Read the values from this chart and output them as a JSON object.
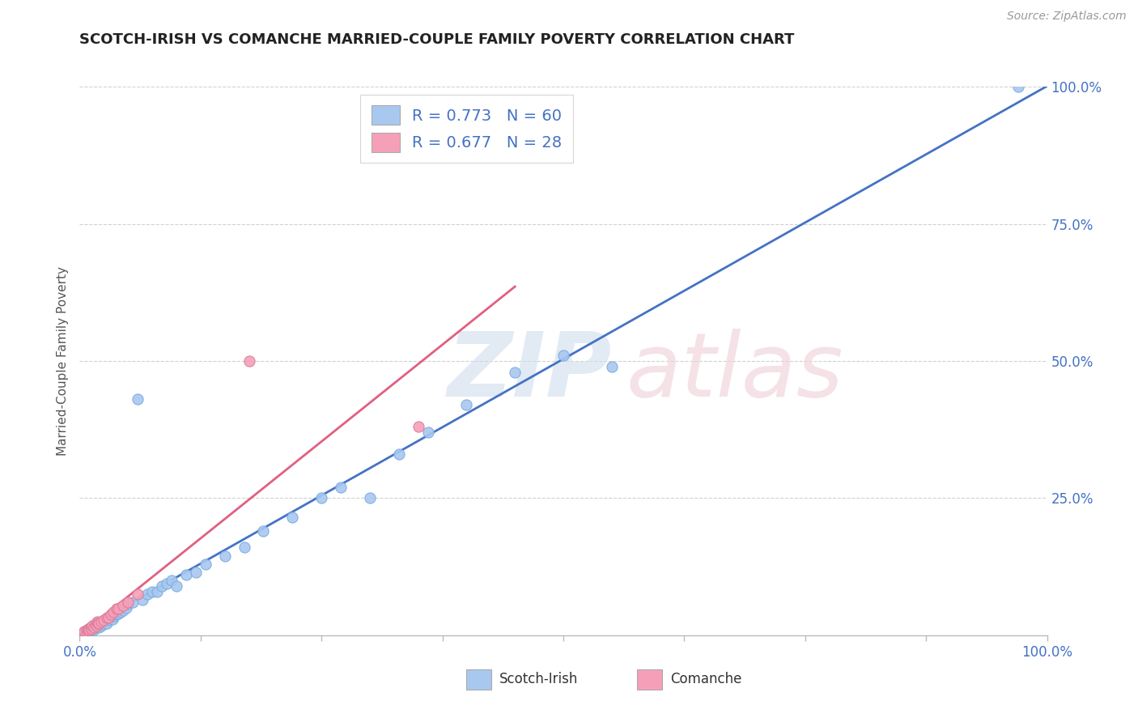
{
  "title": "SCOTCH-IRISH VS COMANCHE MARRIED-COUPLE FAMILY POVERTY CORRELATION CHART",
  "source": "Source: ZipAtlas.com",
  "ylabel": "Married-Couple Family Poverty",
  "legend_scotch_irish": "Scotch-Irish",
  "legend_comanche": "Comanche",
  "scotch_irish_R": 0.773,
  "scotch_irish_N": 60,
  "comanche_R": 0.677,
  "comanche_N": 28,
  "scotch_irish_color": "#A8C8F0",
  "comanche_color": "#F5A0B8",
  "scotch_irish_line_color": "#4472C4",
  "comanche_line_color": "#E06080",
  "background_color": "#FFFFFF",
  "grid_color": "#CCCCCC",
  "xlim": [
    0.0,
    1.0
  ],
  "ylim": [
    0.0,
    1.0
  ],
  "scotch_irish_x": [
    0.005,
    0.005,
    0.007,
    0.008,
    0.009,
    0.01,
    0.01,
    0.012,
    0.013,
    0.014,
    0.015,
    0.015,
    0.016,
    0.017,
    0.018,
    0.02,
    0.021,
    0.022,
    0.023,
    0.025,
    0.026,
    0.027,
    0.028,
    0.03,
    0.032,
    0.034,
    0.036,
    0.038,
    0.04,
    0.042,
    0.045,
    0.048,
    0.05,
    0.055,
    0.06,
    0.065,
    0.07,
    0.075,
    0.08,
    0.085,
    0.09,
    0.095,
    0.1,
    0.11,
    0.12,
    0.13,
    0.15,
    0.17,
    0.19,
    0.22,
    0.25,
    0.27,
    0.3,
    0.33,
    0.36,
    0.4,
    0.45,
    0.5,
    0.55,
    0.97
  ],
  "scotch_irish_y": [
    0.005,
    0.007,
    0.006,
    0.008,
    0.01,
    0.008,
    0.012,
    0.01,
    0.012,
    0.015,
    0.01,
    0.018,
    0.015,
    0.02,
    0.018,
    0.015,
    0.022,
    0.018,
    0.025,
    0.02,
    0.025,
    0.03,
    0.022,
    0.028,
    0.032,
    0.03,
    0.035,
    0.038,
    0.04,
    0.042,
    0.045,
    0.05,
    0.058,
    0.06,
    0.43,
    0.065,
    0.075,
    0.08,
    0.08,
    0.09,
    0.095,
    0.1,
    0.09,
    0.11,
    0.115,
    0.13,
    0.145,
    0.16,
    0.19,
    0.215,
    0.25,
    0.27,
    0.25,
    0.33,
    0.37,
    0.42,
    0.48,
    0.51,
    0.49,
    1.0
  ],
  "comanche_x": [
    0.005,
    0.005,
    0.007,
    0.008,
    0.009,
    0.01,
    0.011,
    0.012,
    0.013,
    0.015,
    0.016,
    0.017,
    0.018,
    0.019,
    0.02,
    0.022,
    0.025,
    0.028,
    0.03,
    0.032,
    0.035,
    0.038,
    0.04,
    0.045,
    0.05,
    0.06,
    0.175,
    0.35
  ],
  "comanche_y": [
    0.005,
    0.008,
    0.007,
    0.01,
    0.012,
    0.01,
    0.015,
    0.012,
    0.018,
    0.015,
    0.02,
    0.018,
    0.025,
    0.022,
    0.022,
    0.025,
    0.028,
    0.032,
    0.032,
    0.038,
    0.042,
    0.048,
    0.048,
    0.055,
    0.06,
    0.075,
    0.5,
    0.38
  ]
}
